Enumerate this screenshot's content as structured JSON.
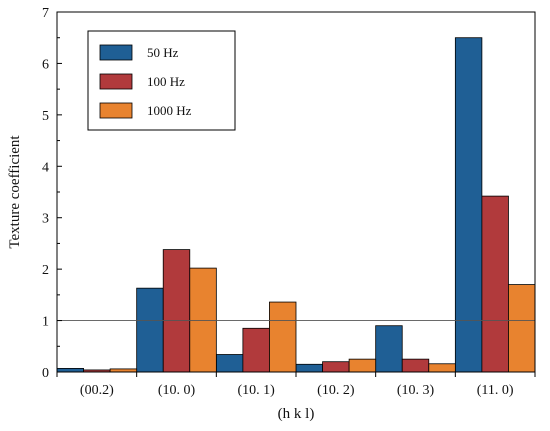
{
  "chart_data": {
    "type": "bar",
    "title": "",
    "xlabel": "(h k l)",
    "ylabel": "Texture coefficient",
    "categories": [
      "(00.2)",
      "(10. 0)",
      "(10. 1)",
      "(10. 2)",
      "(10. 3)",
      "(11. 0)"
    ],
    "series": [
      {
        "name": "50 Hz",
        "color": "#1f5f95",
        "values": [
          0.07,
          1.63,
          0.34,
          0.15,
          0.9,
          6.5
        ]
      },
      {
        "name": "100 Hz",
        "color": "#b13a3c",
        "values": [
          0.04,
          2.38,
          0.85,
          0.2,
          0.25,
          3.42
        ]
      },
      {
        "name": "1000 Hz",
        "color": "#e8832f",
        "values": [
          0.06,
          2.02,
          1.36,
          0.25,
          0.16,
          1.7
        ]
      }
    ],
    "ylim": [
      0,
      7
    ],
    "yticks": [
      0,
      1,
      2,
      3,
      4,
      5,
      6,
      7
    ],
    "reference_line_y": 1,
    "grid": false,
    "legend_position": "top-left"
  }
}
